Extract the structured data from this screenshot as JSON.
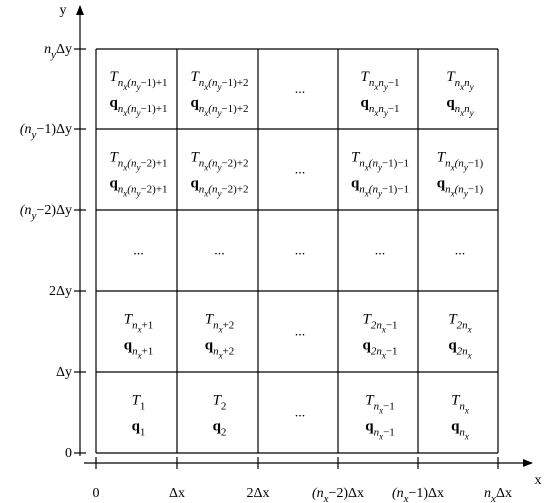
{
  "axes": {
    "x_label": "x",
    "y_label": "y",
    "x_ticks": [
      [
        "0"
      ],
      [
        "Δx"
      ],
      [
        "2Δx"
      ],
      [
        "(n",
        {
          "sub": "x"
        },
        "−2)Δx"
      ],
      [
        "(n",
        {
          "sub": "x"
        },
        "−1)Δx"
      ],
      [
        "n",
        {
          "sub": "x"
        },
        "Δx"
      ]
    ],
    "y_ticks": [
      [
        "0"
      ],
      [
        "Δy"
      ],
      [
        "2Δy"
      ],
      [
        "(n",
        {
          "sub": "y"
        },
        "−2)Δy"
      ],
      [
        "(n",
        {
          "sub": "y"
        },
        "−1)Δy"
      ],
      [
        "n",
        {
          "sub": "y"
        },
        "Δy"
      ]
    ]
  },
  "cells": [
    [
      {
        "t": "T",
        "t_sub": [
          "n",
          {
            "sub": "x"
          },
          "(n",
          {
            "sub": "y"
          },
          "−1)+1"
        ],
        "q": "q",
        "q_sub": [
          "n",
          {
            "sub": "x"
          },
          "(n",
          {
            "sub": "y"
          },
          "−1)+1"
        ]
      },
      {
        "t": "T",
        "t_sub": [
          "n",
          {
            "sub": "x"
          },
          "(n",
          {
            "sub": "y"
          },
          "−1)+2"
        ],
        "q": "q",
        "q_sub": [
          "n",
          {
            "sub": "x"
          },
          "(n",
          {
            "sub": "y"
          },
          "−1)+2"
        ]
      },
      {
        "text": "..."
      },
      {
        "t": "T",
        "t_sub": [
          "n",
          {
            "sub": "x"
          },
          "n",
          {
            "sub": "y"
          },
          "−1"
        ],
        "q": "q",
        "q_sub": [
          "n",
          {
            "sub": "x"
          },
          "n",
          {
            "sub": "y"
          },
          "−1"
        ]
      },
      {
        "t": "T",
        "t_sub": [
          "n",
          {
            "sub": "x"
          },
          "n",
          {
            "sub": "y"
          }
        ],
        "q": "q",
        "q_sub": [
          "n",
          {
            "sub": "x"
          },
          "n",
          {
            "sub": "y"
          }
        ]
      }
    ],
    [
      {
        "t": "T",
        "t_sub": [
          "n",
          {
            "sub": "x"
          },
          "(n",
          {
            "sub": "y"
          },
          "−2)+1"
        ],
        "q": "q",
        "q_sub": [
          "n",
          {
            "sub": "x"
          },
          "(n",
          {
            "sub": "y"
          },
          "−2)+1"
        ]
      },
      {
        "t": "T",
        "t_sub": [
          "n",
          {
            "sub": "x"
          },
          "(n",
          {
            "sub": "y"
          },
          "−2)+2"
        ],
        "q": "q",
        "q_sub": [
          "n",
          {
            "sub": "x"
          },
          "(n",
          {
            "sub": "y"
          },
          "−2)+2"
        ]
      },
      {
        "text": "..."
      },
      {
        "t": "T",
        "t_sub": [
          "n",
          {
            "sub": "x"
          },
          "(n",
          {
            "sub": "y"
          },
          "−1)−1"
        ],
        "q": "q",
        "q_sub": [
          "n",
          {
            "sub": "x"
          },
          "(n",
          {
            "sub": "y"
          },
          "−1)−1"
        ]
      },
      {
        "t": "T",
        "t_sub": [
          "n",
          {
            "sub": "x"
          },
          "(n",
          {
            "sub": "y"
          },
          "−1)"
        ],
        "q": "q",
        "q_sub": [
          "n",
          {
            "sub": "x"
          },
          "(n",
          {
            "sub": "y"
          },
          "−1)"
        ]
      }
    ],
    [
      {
        "text": "..."
      },
      {
        "text": "..."
      },
      {
        "text": "..."
      },
      {
        "text": "..."
      },
      {
        "text": "..."
      }
    ],
    [
      {
        "t": "T",
        "t_sub": [
          "n",
          {
            "sub": "x"
          },
          "+1"
        ],
        "q": "q",
        "q_sub": [
          "n",
          {
            "sub": "x"
          },
          "+1"
        ]
      },
      {
        "t": "T",
        "t_sub": [
          "n",
          {
            "sub": "x"
          },
          "+2"
        ],
        "q": "q",
        "q_sub": [
          "n",
          {
            "sub": "x"
          },
          "+2"
        ]
      },
      {
        "text": "..."
      },
      {
        "t": "T",
        "t_sub": [
          "2n",
          {
            "sub": "x"
          },
          "−1"
        ],
        "q": "q",
        "q_sub": [
          "2n",
          {
            "sub": "x"
          },
          "−1"
        ]
      },
      {
        "t": "T",
        "t_sub": [
          "2n",
          {
            "sub": "x"
          }
        ],
        "q": "q",
        "q_sub": [
          "2n",
          {
            "sub": "x"
          }
        ]
      }
    ],
    [
      {
        "t": "T",
        "t_sub": [
          "1"
        ],
        "q": "q",
        "q_sub": [
          "1"
        ]
      },
      {
        "t": "T",
        "t_sub": [
          "2"
        ],
        "q": "q",
        "q_sub": [
          "2"
        ]
      },
      {
        "text": "..."
      },
      {
        "t": "T",
        "t_sub": [
          "n",
          {
            "sub": "x"
          },
          "−1"
        ],
        "q": "q",
        "q_sub": [
          "n",
          {
            "sub": "x"
          },
          "−1"
        ]
      },
      {
        "t": "T",
        "t_sub": [
          "n",
          {
            "sub": "x"
          }
        ],
        "q": "q",
        "q_sub": [
          "n",
          {
            "sub": "x"
          }
        ]
      }
    ]
  ]
}
